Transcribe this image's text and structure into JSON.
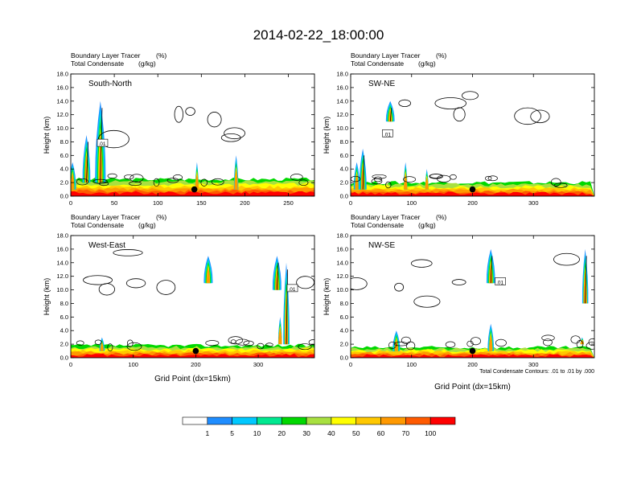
{
  "title": "2014-02-22_18:00:00",
  "colors": {
    "scale": [
      "#ffffff",
      "#1f8dff",
      "#00c8ff",
      "#00e890",
      "#00d800",
      "#a8e040",
      "#ffff00",
      "#ffc800",
      "#ff9900",
      "#ff5a00",
      "#ff0000"
    ],
    "contour": "#000000"
  },
  "colorbar": {
    "labels": [
      "1",
      "5",
      "10",
      "20",
      "30",
      "40",
      "50",
      "60",
      "70",
      "100"
    ]
  },
  "footnote": "Total Condensate Contours: .01 to .01 by .000",
  "chart_data": [
    {
      "type": "heatmap",
      "name": "South-North",
      "subtitle1_left": "Boundary Layer Tracer",
      "subtitle1_right": "(%)",
      "subtitle2_left": "Total Condensate",
      "subtitle2_right": "(g/kg)",
      "ylabel": "Height (km)",
      "xlabel": "",
      "xlim": [
        0,
        280
      ],
      "ylim": [
        0,
        18
      ],
      "xticks": [
        0,
        50,
        100,
        150,
        200,
        250
      ],
      "yticks": [
        "0.0",
        "2.0",
        "4.0",
        "6.0",
        "8.0",
        "10.0",
        "12.0",
        "14.0",
        "16.0",
        "18.0"
      ],
      "contour_label": ".01",
      "contour_label_pos": [
        36,
        7.8
      ],
      "marker_x": 142,
      "plumes": [
        [
          34,
          2,
          14,
          12
        ],
        [
          18,
          2,
          9,
          9
        ],
        [
          2,
          1,
          5,
          8
        ],
        [
          190,
          1,
          6,
          5
        ],
        [
          145,
          1,
          5,
          3
        ]
      ],
      "base": 2.5
    },
    {
      "type": "heatmap",
      "name": "SW-NE",
      "subtitle1_left": "Boundary Layer Tracer",
      "subtitle1_right": "(%)",
      "subtitle2_left": "Total Condensate",
      "subtitle2_right": "(g/kg)",
      "ylabel": "Height (km)",
      "xlabel": "",
      "xlim": [
        0,
        400
      ],
      "ylim": [
        0,
        18
      ],
      "xticks": [
        0,
        100,
        200,
        300
      ],
      "yticks": [
        "0.0",
        "2.0",
        "4.0",
        "6.0",
        "8.0",
        "10.0",
        "12.0",
        "14.0",
        "16.0",
        "18.0"
      ],
      "contour_label": ".01",
      "contour_label_pos": [
        60,
        9.2
      ],
      "marker_x": 200,
      "plumes": [
        [
          65,
          11,
          14,
          14
        ],
        [
          20,
          1,
          7,
          12
        ],
        [
          10,
          1,
          5,
          10
        ],
        [
          90,
          1,
          5,
          6
        ],
        [
          125,
          1,
          4,
          2
        ]
      ],
      "base": 2
    },
    {
      "type": "heatmap",
      "name": "West-East",
      "subtitle1_left": "Boundary Layer Tracer",
      "subtitle1_right": "(%)",
      "subtitle2_left": "Total Condensate",
      "subtitle2_right": "(g/kg)",
      "ylabel": "Height (km)",
      "xlabel": "Grid Point (dx=15km)",
      "xlim": [
        0,
        390
      ],
      "ylim": [
        0,
        18
      ],
      "xticks": [
        0,
        100,
        200,
        300
      ],
      "yticks": [
        "0.0",
        "2.0",
        "4.0",
        "6.0",
        "8.0",
        "10.0",
        "12.0",
        "14.0",
        "16.0",
        "18.0"
      ],
      "contour_label": ".01",
      "contour_label_pos": [
        354,
        10.2
      ],
      "marker_x": 200,
      "plumes": [
        [
          330,
          10,
          15,
          14
        ],
        [
          345,
          2,
          14,
          10
        ],
        [
          220,
          11,
          15,
          14
        ],
        [
          335,
          2,
          6,
          6
        ],
        [
          50,
          1,
          3,
          8
        ]
      ],
      "base": 1.8
    },
    {
      "type": "heatmap",
      "name": "NW-SE",
      "subtitle1_left": "Boundary Layer Tracer",
      "subtitle1_right": "(%)",
      "subtitle2_left": "Total Condensate",
      "subtitle2_right": "(g/kg)",
      "ylabel": "Height (km)",
      "xlabel": "Grid Point (dx=15km)",
      "xlim": [
        0,
        400
      ],
      "ylim": [
        0,
        18
      ],
      "xticks": [
        0,
        100,
        200,
        300
      ],
      "yticks": [
        "0.0",
        "2.0",
        "4.0",
        "6.0",
        "8.0",
        "10.0",
        "12.0",
        "14.0",
        "16.0",
        "18.0"
      ],
      "contour_label": ".01",
      "contour_label_pos": [
        245,
        11.2
      ],
      "marker_x": 200,
      "plumes": [
        [
          230,
          11,
          16,
          14
        ],
        [
          385,
          8,
          16,
          10
        ],
        [
          75,
          1,
          4,
          12
        ],
        [
          230,
          1,
          5,
          10
        ],
        [
          380,
          2,
          3,
          4
        ]
      ],
      "base": 1.5
    }
  ]
}
